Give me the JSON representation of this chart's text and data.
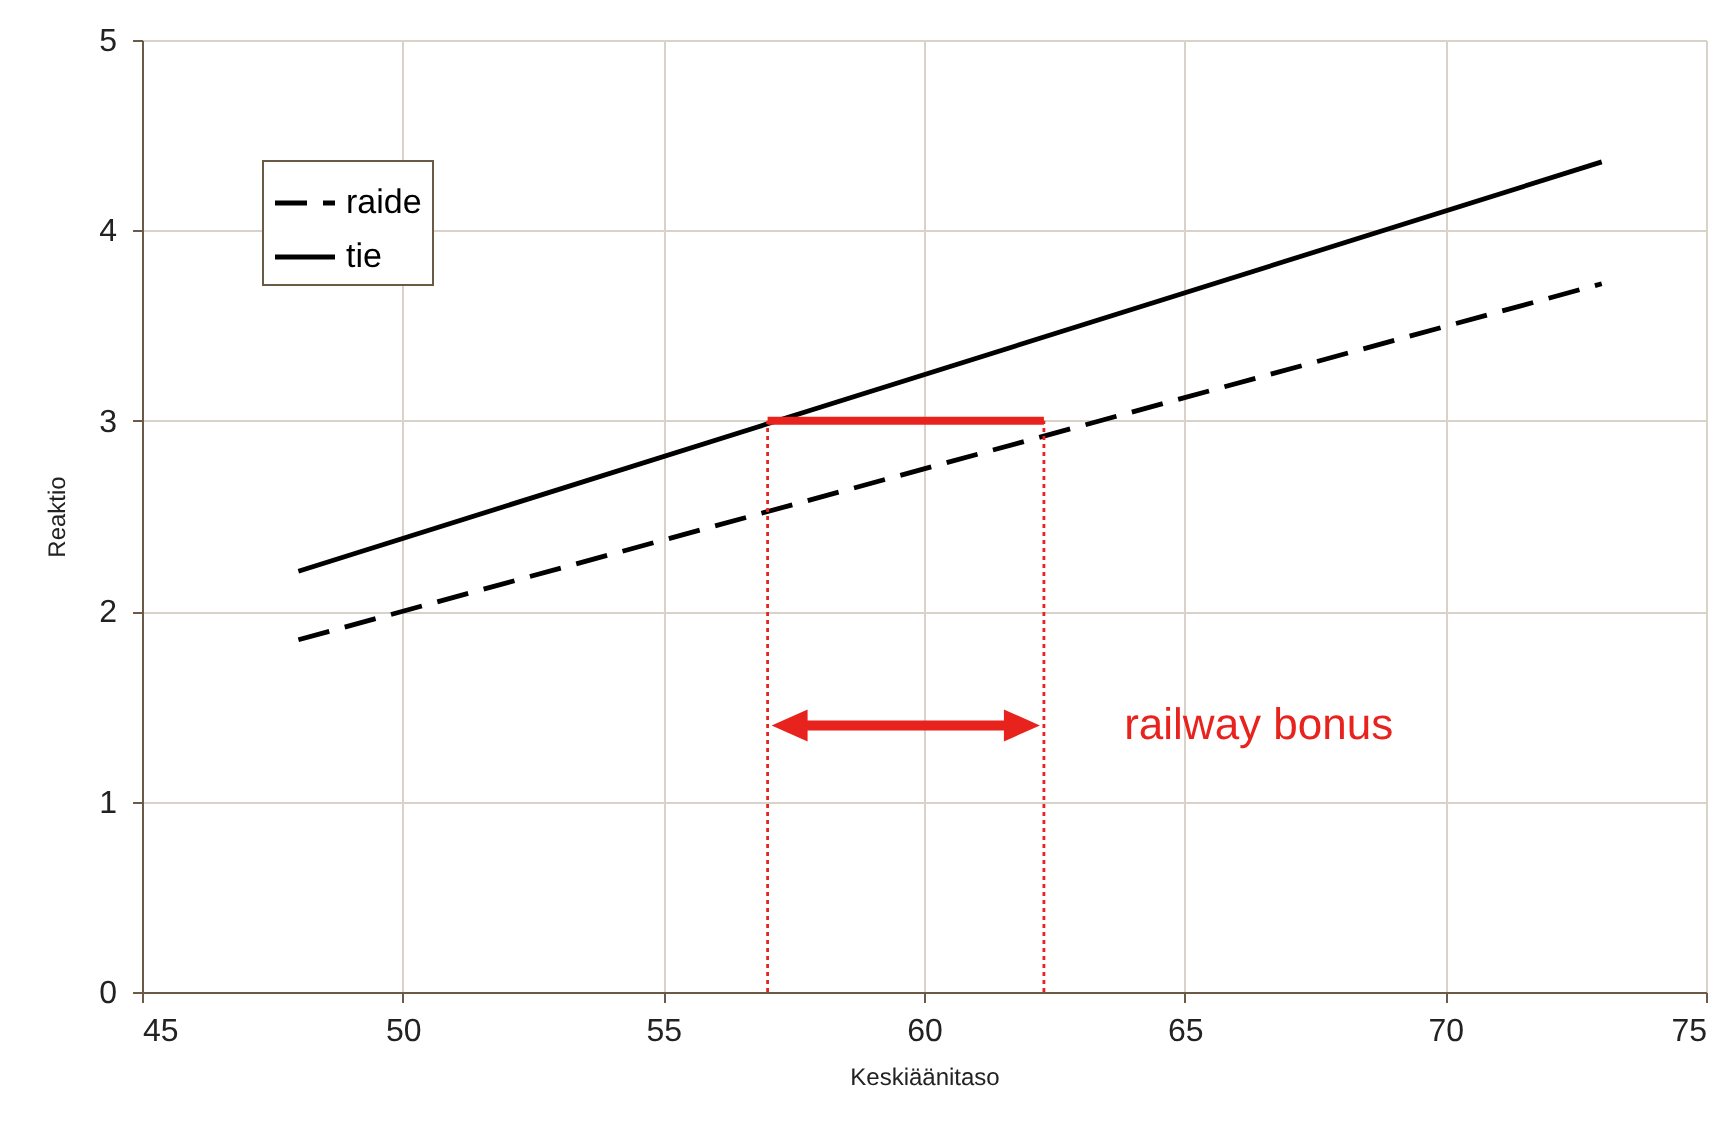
{
  "chart_data": {
    "type": "line",
    "xlabel": "Keskiäänitaso",
    "ylabel": "Reaktio",
    "xlim": [
      45,
      75
    ],
    "ylim": [
      0,
      5
    ],
    "xticks": [
      45,
      50,
      55,
      60,
      65,
      70,
      75
    ],
    "yticks": [
      0,
      1,
      2,
      3,
      4,
      5
    ],
    "grid": true,
    "legend": "top left",
    "series": [
      {
        "name": "raide",
        "color": "#000000",
        "line_style": "dashed",
        "x": [
          48,
          73
        ],
        "values": [
          1.85,
          3.72
        ]
      },
      {
        "name": "tie",
        "color": "#000000",
        "line_style": "solid",
        "x": [
          48,
          73
        ],
        "values": [
          2.21,
          4.36
        ]
      },
      {
        "color": "#e8231d",
        "line_style": "solid",
        "x": [
          57,
          62.3
        ],
        "values": [
          3,
          3
        ]
      },
      {
        "color": "#e8231d",
        "line_style": "dotted",
        "x": [
          57,
          57
        ],
        "values": [
          0,
          3
        ]
      },
      {
        "color": "#e8231d",
        "line_style": "dotted",
        "x": [
          62.3,
          62.3
        ],
        "values": [
          0,
          3
        ]
      }
    ],
    "annotations": [
      "railway bonus"
    ]
  }
}
